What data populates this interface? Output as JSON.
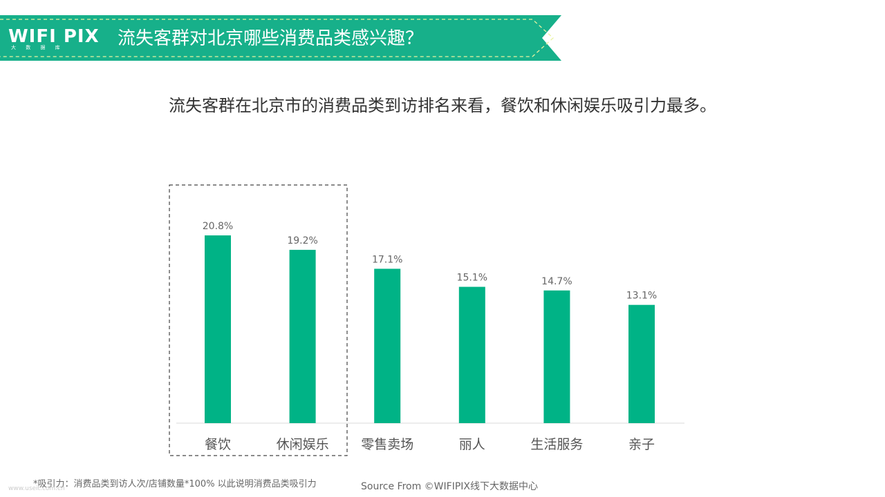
{
  "header": {
    "logo_text": "WIFI PIX",
    "logo_subtext": "大 数 据 库",
    "title": "流失客群对北京哪些消费品类感兴趣？",
    "accent_color": "#17b08a"
  },
  "subtitle": "流失客群在北京市的消费品类到访排名来看，餐饮和休闲娱乐吸引力最多。",
  "chart_data": {
    "type": "bar",
    "categories": [
      "餐饮",
      "休闲娱乐",
      "零售卖场",
      "丽人",
      "生活服务",
      "亲子"
    ],
    "values": [
      20.8,
      19.2,
      17.1,
      15.1,
      14.7,
      13.1
    ],
    "value_labels": [
      "20.8%",
      "19.2%",
      "17.1%",
      "15.1%",
      "14.7%",
      "13.1%"
    ],
    "unit": "%",
    "title": "",
    "xlabel": "",
    "ylabel": "",
    "ylim": [
      0,
      24
    ],
    "grid": false,
    "bar_color": "#00b386",
    "highlight": [
      "餐饮",
      "休闲娱乐"
    ]
  },
  "footnote": "*吸引力：消费品类到访人次/店铺数量*100%   以此说明消费品类吸引力",
  "source": "Source From ©WIFIPIX线下大数据中心",
  "watermark": "www.useit.com.cn"
}
